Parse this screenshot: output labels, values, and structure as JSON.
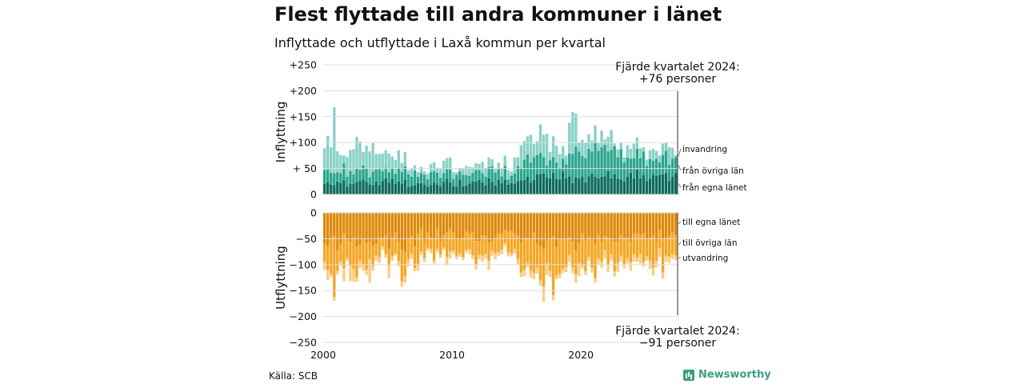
{
  "title": "Flest flyttade till andra kommuner i länet",
  "subtitle": "Inflyttade och utflyttade i Laxå kommun per kvartal",
  "source": "Källa: SCB",
  "brand": "Newsworthy",
  "colors": {
    "in_own": "#0f6b5d",
    "in_other": "#2aa58e",
    "in_abroad": "#88d2c6",
    "out_own": "#de8a0d",
    "out_other": "#f5a623",
    "out_abroad": "#f9cd85",
    "grid": "#dddddd",
    "text": "#111111"
  },
  "chart_data": {
    "type": "bar",
    "x_start": "2000 Q1",
    "periods_per_year": 4,
    "x_ticks": [
      "2000",
      "2010",
      "2020"
    ],
    "inflow": {
      "ylabel": "Inflyttning",
      "yticks": [
        "+250",
        "+200",
        "+150",
        "+100",
        "+ 50",
        "0"
      ],
      "ylim": [
        0,
        250
      ],
      "annotation": [
        "Fjärde kvartalet 2024:",
        "+76 personer"
      ],
      "series": [
        {
          "name": "från egna länet",
          "values": [
            20,
            23,
            19,
            18,
            25,
            22,
            27,
            15,
            20,
            20,
            24,
            26,
            29,
            24,
            19,
            18,
            25,
            18,
            26,
            31,
            23,
            30,
            20,
            25,
            20,
            28,
            14,
            16,
            18,
            22,
            22,
            19,
            15,
            18,
            23,
            19,
            16,
            24,
            30,
            23,
            16,
            15,
            29,
            16,
            17,
            21,
            25,
            25,
            28,
            23,
            17,
            31,
            24,
            17,
            28,
            22,
            28,
            19,
            22,
            20,
            26,
            27,
            28,
            34,
            23,
            28,
            39,
            39,
            40,
            33,
            31,
            42,
            30,
            29,
            44,
            31,
            35,
            22,
            33,
            31,
            34,
            23,
            35,
            40,
            34,
            31,
            34,
            35,
            45,
            31,
            39,
            30,
            29,
            25,
            34,
            42,
            30,
            48,
            31,
            37,
            26,
            30,
            38,
            36,
            37,
            39,
            41,
            26,
            34,
            41
          ]
        },
        {
          "name": "från övriga län",
          "values": [
            27,
            25,
            23,
            23,
            18,
            19,
            33,
            19,
            25,
            19,
            26,
            21,
            27,
            27,
            14,
            26,
            23,
            31,
            19,
            21,
            20,
            21,
            20,
            26,
            23,
            26,
            25,
            18,
            28,
            12,
            19,
            19,
            14,
            25,
            22,
            23,
            16,
            17,
            19,
            25,
            14,
            23,
            15,
            22,
            20,
            15,
            17,
            22,
            19,
            18,
            17,
            22,
            30,
            25,
            21,
            13,
            27,
            10,
            14,
            20,
            29,
            23,
            39,
            43,
            38,
            44,
            37,
            41,
            32,
            23,
            35,
            30,
            31,
            21,
            25,
            27,
            44,
            56,
            59,
            52,
            40,
            47,
            53,
            43,
            66,
            53,
            57,
            61,
            38,
            55,
            54,
            42,
            58,
            36,
            37,
            27,
            40,
            40,
            39,
            46,
            29,
            38,
            27,
            33,
            25,
            37,
            43,
            31,
            35,
            31
          ]
        },
        {
          "name": "invandring",
          "values": [
            42,
            65,
            49,
            127,
            40,
            35,
            15,
            38,
            41,
            48,
            61,
            55,
            26,
            43,
            50,
            55,
            30,
            29,
            34,
            33,
            36,
            22,
            26,
            34,
            18,
            28,
            8,
            15,
            10,
            9,
            12,
            7,
            11,
            16,
            17,
            9,
            17,
            24,
            21,
            23,
            13,
            5,
            7,
            11,
            18,
            17,
            10,
            13,
            12,
            22,
            17,
            18,
            14,
            7,
            12,
            14,
            20,
            18,
            8,
            31,
            17,
            45,
            36,
            35,
            54,
            25,
            27,
            55,
            43,
            61,
            16,
            40,
            33,
            28,
            24,
            17,
            59,
            81,
            64,
            18,
            31,
            29,
            28,
            21,
            33,
            16,
            32,
            10,
            28,
            38,
            5,
            15,
            13,
            10,
            24,
            19,
            28,
            22,
            19,
            8,
            12,
            17,
            23,
            15,
            13,
            22,
            16,
            34,
            21,
            4
          ]
        }
      ]
    },
    "outflow": {
      "ylabel": "Utflyttning",
      "yticks": [
        "0",
        "−50",
        "−100",
        "−150",
        "−200",
        "−250"
      ],
      "ylim": [
        -250,
        0
      ],
      "annotation": [
        "Fjärde kvartalet 2024:",
        "−91 personer"
      ],
      "series": [
        {
          "name": "till egna länet",
          "values": [
            -60,
            -65,
            -48,
            -45,
            -72,
            -60,
            -40,
            -52,
            -55,
            -48,
            -66,
            -62,
            -50,
            -58,
            -54,
            -63,
            -60,
            -48,
            -48,
            -43,
            -70,
            -47,
            -38,
            -55,
            -72,
            -75,
            -50,
            -45,
            -65,
            -40,
            -30,
            -54,
            -38,
            -48,
            -50,
            -30,
            -55,
            -43,
            -38,
            -30,
            -38,
            -50,
            -50,
            -48,
            -36,
            -40,
            -38,
            -54,
            -54,
            -43,
            -45,
            -58,
            -54,
            -50,
            -40,
            -40,
            -33,
            -36,
            -34,
            -40,
            -44,
            -58,
            -50,
            -47,
            -52,
            -38,
            -60,
            -65,
            -70,
            -53,
            -50,
            -45,
            -66,
            -50,
            -50,
            -52,
            -48,
            -55,
            -73,
            -58,
            -40,
            -53,
            -47,
            -52,
            -60,
            -43,
            -54,
            -45,
            -47,
            -50,
            -55,
            -54,
            -43,
            -48,
            -48,
            -55,
            -40,
            -40,
            -43,
            -40,
            -52,
            -47,
            -44,
            -55,
            -33,
            -50,
            -48,
            -45,
            -38,
            -42
          ]
        },
        {
          "name": "till övriga län",
          "values": [
            -35,
            -45,
            -70,
            -117,
            -40,
            -34,
            -67,
            -36,
            -47,
            -60,
            -58,
            -30,
            -50,
            -52,
            -36,
            -40,
            -22,
            -38,
            -17,
            -37,
            -32,
            -37,
            -40,
            -38,
            -60,
            -47,
            -40,
            -34,
            -42,
            -60,
            -45,
            -33,
            -30,
            -22,
            -42,
            -40,
            -26,
            -24,
            -47,
            -44,
            -35,
            -33,
            -28,
            -38,
            -36,
            -30,
            -44,
            -46,
            -27,
            -40,
            -34,
            -35,
            -20,
            -28,
            -36,
            -31,
            -25,
            -40,
            -44,
            -30,
            -46,
            -57,
            -60,
            -50,
            -60,
            -78,
            -45,
            -66,
            -72,
            -44,
            -62,
            -114,
            -55,
            -67,
            -58,
            -52,
            -34,
            -50,
            -46,
            -39,
            -61,
            -60,
            -38,
            -54,
            -66,
            -46,
            -40,
            -27,
            -51,
            -30,
            -58,
            -43,
            -40,
            -50,
            -40,
            -40,
            -40,
            -47,
            -37,
            -55,
            -32,
            -45,
            -62,
            -38,
            -35,
            -65,
            -35,
            -40,
            -42,
            -40
          ]
        },
        {
          "name": "utvandring",
          "values": [
            -15,
            -20,
            -5,
            -8,
            -7,
            -8,
            -25,
            -5,
            -30,
            -25,
            -9,
            -14,
            -12,
            -10,
            -45,
            -9,
            -11,
            -11,
            -6,
            -7,
            -24,
            -9,
            -4,
            -10,
            -11,
            -13,
            -13,
            -10,
            -6,
            -12,
            -6,
            -8,
            -5,
            -8,
            -6,
            -6,
            -6,
            -4,
            -16,
            -14,
            -6,
            -6,
            -7,
            -5,
            -5,
            -10,
            -7,
            -9,
            -9,
            -11,
            -10,
            -17,
            -9,
            -12,
            -7,
            -9,
            -6,
            -8,
            -6,
            -9,
            -9,
            -9,
            -12,
            -8,
            -13,
            -12,
            -12,
            -10,
            -30,
            -23,
            -12,
            -10,
            -7,
            -9,
            -8,
            -10,
            -13,
            -12,
            -16,
            -25,
            -6,
            -7,
            -8,
            -9,
            -9,
            -11,
            -12,
            -16,
            -16,
            -12,
            -10,
            -17,
            -11,
            -9,
            -10,
            -17,
            -14,
            -8,
            -18,
            -9,
            -8,
            -17,
            -15,
            -12,
            -17,
            -12,
            -11,
            -12,
            -9,
            -9
          ]
        }
      ]
    }
  }
}
